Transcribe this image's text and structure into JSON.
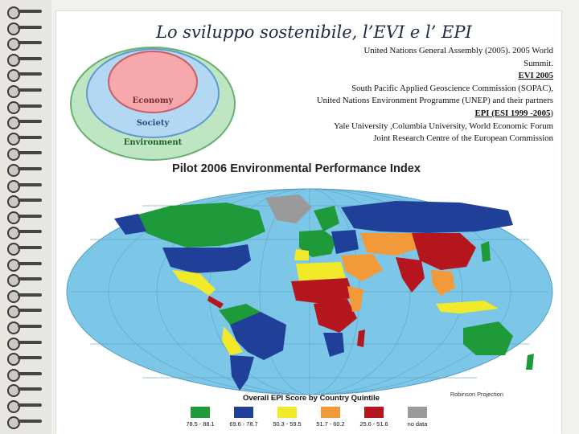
{
  "slide": {
    "title": "Lo sviluppo sostenibile,  l’EVI e l’ EPI"
  },
  "diagram": {
    "inner": "Economy",
    "middle": "Society",
    "outer": "Environment",
    "colors": {
      "inner": "#f6a8ad",
      "middle": "#b3d8f4",
      "outer": "#bfe6c2"
    }
  },
  "references": {
    "line1": "United Nations General Assembly (2005). 2005 World",
    "line2": "Summit.",
    "evi_heading": "EVI 2005",
    "line3": "South Pacific Applied Geoscience Commission (SOPAC),",
    "line4": "United Nations Environment Programme (UNEP) and their partners",
    "epi_heading": "EPI (ESI  1999 -2005",
    "epi_tail": ")",
    "line5": "Yale University ,Columbia University, World Economic Forum",
    "line6": "Joint Research Centre of the European Commission"
  },
  "map": {
    "title": "Pilot 2006 Environmental Performance Index",
    "projection": "Robinson Projection",
    "legend_title": "Overall EPI Score by Country Quintile",
    "legend": [
      {
        "label": "78.5 - 88.1",
        "color": "#1e9a3a"
      },
      {
        "label": "69.6 - 78.7",
        "color": "#1f3f98"
      },
      {
        "label": "50.3 - 59.5",
        "color": "#f1ea2a"
      },
      {
        "label": "51.7 - 60.2",
        "color": "#f29a3a"
      },
      {
        "label": "25.6 - 51.6",
        "color": "#b5161e"
      },
      {
        "label": "no data",
        "color": "#9a9a9a"
      }
    ],
    "ocean_color": "#7cc7e8"
  }
}
